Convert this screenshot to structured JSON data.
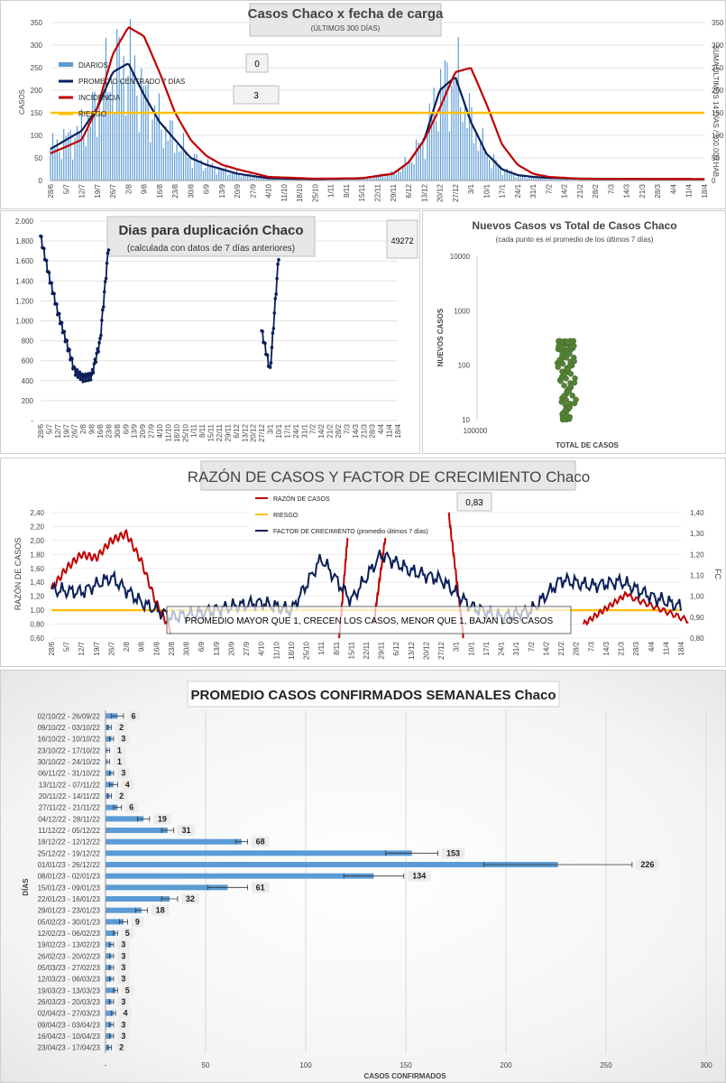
{
  "x_dates": [
    "28/6",
    "5/7",
    "12/7",
    "19/7",
    "26/7",
    "2/8",
    "9/8",
    "16/8",
    "23/8",
    "30/8",
    "6/9",
    "13/9",
    "20/9",
    "27/9",
    "4/10",
    "11/10",
    "18/10",
    "25/10",
    "1/11",
    "8/11",
    "15/11",
    "22/11",
    "29/11",
    "6/12",
    "13/12",
    "20/12",
    "27/12",
    "3/1",
    "10/1",
    "17/1",
    "24/1",
    "31/1",
    "7/2",
    "14/2",
    "21/2",
    "28/2",
    "7/3",
    "14/3",
    "21/3",
    "28/3",
    "4/4",
    "11/4",
    "18/4"
  ],
  "chart1": {
    "title": "Casos Chaco x fecha de carga",
    "subtitle": "(ÚLTIMOS 300 DÍAS)",
    "ylabel_left": "CASOS",
    "ylabel_right": "SUMA ÚLTIMOS 14 DÍAS / 100.000 HAB",
    "yticks_left": [
      "0",
      "50",
      "100",
      "150",
      "200",
      "250",
      "300",
      "350"
    ],
    "yticks_right": [
      "0",
      "50",
      "100",
      "150",
      "200",
      "250",
      "300",
      "350"
    ],
    "box1": "0",
    "box2": "3",
    "legend": [
      "DIARIOS",
      "PROMEDIO CENTRADO 7 DÍAS",
      "INCIDENCIA",
      "RIESGO"
    ],
    "colors": {
      "diarios": "#5b9bd5",
      "promedio": "#0b1f5a",
      "incidencia": "#c00000",
      "riesgo": "#ffc000"
    }
  },
  "chart2": {
    "title": "Dias para duplicación Chaco",
    "subtitle": "(calculada con datos de 7 días anteriores)",
    "box": "49272",
    "yticks": [
      "-",
      "200",
      "400",
      "600",
      "800",
      "1.000",
      "1.200",
      "1.400",
      "1.600",
      "1.800",
      "2.000"
    ],
    "color": "#0b1f5a"
  },
  "chart3": {
    "title": "Nuevos Casos vs Total de Casos Chaco",
    "subtitle": "(cada punto es el promedio de los últimos 7 días)",
    "ylabel": "NUEVOS CASOS",
    "xlabel": "TOTAL DE CASOS",
    "yticks": [
      "10",
      "100",
      "1000",
      "10000"
    ],
    "xtick": "100000",
    "color": "#548235"
  },
  "chart4": {
    "title": "RAZÓN DE CASOS Y FACTOR DE CRECIMIENTO Chaco",
    "ylabel_left": "RAZÓN DE CASOS",
    "ylabel_right": "FC",
    "yticks_left": [
      "0,60",
      "0,80",
      "1,00",
      "1,20",
      "1,40",
      "1,60",
      "1,80",
      "2,00",
      "2,20",
      "2,40"
    ],
    "yticks_right": [
      "0,80",
      "0,90",
      "1,00",
      "1,10",
      "1,20",
      "1,30",
      "1,40"
    ],
    "legend": [
      "RAZÓN DE CASOS",
      "RIESGO",
      "FACTOR DE CRECIMIENTO (promedio últimos 7 días)"
    ],
    "box": "0,83",
    "annotation": "PROMEDIO MAYOR QUE 1, CRECEN LOS CASOS, MENOR QUE 1, BAJAN LOS CASOS",
    "colors": {
      "razon": "#c00000",
      "riesgo": "#ffc000",
      "factor": "#0b1f5a"
    }
  },
  "chart5": {
    "title": "PROMEDIO CASOS CONFIRMADOS SEMANALES Chaco",
    "ylabel": "DÍAS",
    "xlabel": "CASOS CONFIRMADOS",
    "xticks": [
      "-",
      "50",
      "100",
      "150",
      "200",
      "250",
      "300"
    ],
    "bar_color": "#5b9bd5"
  },
  "chart_data": [
    {
      "type": "bar",
      "title": "Casos Chaco x fecha de carga",
      "subtitle": "(ÚLTIMOS 300 DÍAS)",
      "ylim": [
        0,
        350
      ],
      "y2lim": [
        0,
        350
      ],
      "series": [
        {
          "name": "PROMEDIO CENTRADO 7 DÍAS",
          "x": [
            "28/6",
            "12/7",
            "19/7",
            "26/7",
            "2/8",
            "9/8",
            "16/8",
            "23/8",
            "30/8",
            "6/9",
            "13/9",
            "20/9",
            "4/10",
            "25/10",
            "15/11",
            "29/11",
            "6/12",
            "13/12",
            "20/12",
            "27/12",
            "3/1",
            "10/1",
            "17/1",
            "24/1",
            "31/1",
            "7/2",
            "21/2",
            "18/4"
          ],
          "values": [
            70,
            110,
            160,
            240,
            260,
            190,
            130,
            90,
            50,
            35,
            25,
            15,
            5,
            3,
            5,
            15,
            40,
            90,
            200,
            230,
            130,
            60,
            25,
            12,
            8,
            6,
            4,
            3
          ]
        },
        {
          "name": "INCIDENCIA",
          "x": [
            "28/6",
            "12/7",
            "19/7",
            "26/7",
            "2/8",
            "9/8",
            "16/8",
            "23/8",
            "30/8",
            "6/9",
            "13/9",
            "20/9",
            "4/10",
            "25/10",
            "15/11",
            "29/11",
            "6/12",
            "13/12",
            "20/12",
            "27/12",
            "3/1",
            "10/1",
            "17/1",
            "24/1",
            "31/1",
            "7/2",
            "21/2",
            "18/4"
          ],
          "values": [
            60,
            90,
            160,
            280,
            340,
            320,
            240,
            150,
            90,
            55,
            35,
            25,
            8,
            4,
            5,
            15,
            40,
            90,
            160,
            240,
            250,
            170,
            80,
            35,
            15,
            8,
            4,
            3
          ]
        },
        {
          "name": "RIESGO",
          "values": [
            150
          ]
        }
      ]
    },
    {
      "type": "line",
      "title": "Dias para duplicación Chaco",
      "subtitle": "(calculada con datos de 7 días anteriores)",
      "ylim": [
        0,
        2000
      ],
      "x": [
        "28/6",
        "5/7",
        "12/7",
        "19/7",
        "26/7",
        "2/8",
        "9/8",
        "16/8",
        "23/8",
        "27/12",
        "3/1",
        "10/1"
      ],
      "values": [
        1850,
        1450,
        1100,
        800,
        500,
        430,
        450,
        800,
        1750,
        900,
        500,
        1650
      ]
    },
    {
      "type": "scatter",
      "title": "Nuevos Casos vs Total de Casos Chaco",
      "subtitle": "(cada punto es el promedio de los últimos 7 días)",
      "xlabel": "TOTAL DE CASOS",
      "ylabel": "NUEVOS CASOS",
      "yscale": "log",
      "ylim": [
        10,
        10000
      ],
      "y_range_of_points": [
        10,
        280
      ]
    },
    {
      "type": "line",
      "title": "RAZÓN DE CASOS Y FACTOR DE CRECIMIENTO Chaco",
      "ylim": [
        0.6,
        2.4
      ],
      "y2lim": [
        0.8,
        1.4
      ],
      "series": [
        {
          "name": "RAZÓN DE CASOS",
          "x": [
            "28/6",
            "5/7",
            "12/7",
            "19/7",
            "26/7",
            "2/8",
            "9/8",
            "16/8",
            "23/8"
          ],
          "values": [
            1.3,
            1.6,
            1.8,
            1.75,
            2.0,
            2.1,
            1.7,
            1.1,
            0.7
          ]
        },
        {
          "name": "RIESGO",
          "values": [
            1.0
          ]
        },
        {
          "name": "FACTOR DE CRECIMIENTO (promedio últimos 7 días)",
          "x": [
            "28/6",
            "12/7",
            "26/7",
            "9/8",
            "23/8",
            "6/9",
            "20/9",
            "4/10",
            "18/10",
            "1/11",
            "15/11",
            "29/11",
            "13/12",
            "27/12",
            "10/1",
            "24/1",
            "7/2",
            "21/2",
            "7/3",
            "21/3",
            "4/4",
            "18/4"
          ],
          "values": [
            1.03,
            1.02,
            1.09,
            0.97,
            0.9,
            0.92,
            0.95,
            0.97,
            0.93,
            1.18,
            0.98,
            1.2,
            1.12,
            1.08,
            0.95,
            0.9,
            0.93,
            1.08,
            1.05,
            1.07,
            1.0,
            0.95
          ]
        }
      ]
    },
    {
      "type": "bar",
      "orientation": "horizontal",
      "title": "PROMEDIO CASOS CONFIRMADOS SEMANALES Chaco",
      "xlabel": "CASOS CONFIRMADOS",
      "ylabel": "DÍAS",
      "xlim": [
        0,
        300
      ],
      "categories": [
        "02/10/22 - 26/09/22",
        "09/10/22 - 03/10/22",
        "16/10/22 - 10/10/22",
        "23/10/22 - 17/10/22",
        "30/10/22 - 24/10/22",
        "06/11/22 - 31/10/22",
        "13/11/22 - 07/11/22",
        "20/11/22 - 14/11/22",
        "27/11/22 - 21/11/22",
        "04/12/22 - 28/11/22",
        "11/12/22 - 05/12/22",
        "18/12/22 - 12/12/22",
        "25/12/22 - 19/12/22",
        "01/01/23 - 26/12/22",
        "08/01/23 - 02/01/23",
        "15/01/23 - 09/01/23",
        "22/01/23 - 16/01/23",
        "29/01/23 - 23/01/23",
        "05/02/23 - 30/01/23",
        "12/02/23 - 06/02/23",
        "19/02/23 - 13/02/23",
        "26/02/23 - 20/02/23",
        "05/03/23 - 27/02/23",
        "12/03/23 - 06/03/23",
        "19/03/23 - 13/03/23",
        "26/03/23 - 20/03/23",
        "02/04/23 - 27/03/23",
        "09/04/23 - 03/04/23",
        "16/04/23 - 10/04/23",
        "23/04/23 - 17/04/23"
      ],
      "values": [
        6,
        2,
        3,
        1,
        1,
        3,
        4,
        2,
        6,
        19,
        31,
        68,
        153,
        226,
        134,
        61,
        32,
        18,
        9,
        5,
        3,
        3,
        3,
        3,
        5,
        3,
        4,
        3,
        3,
        2
      ],
      "error": [
        3,
        1,
        1,
        1,
        1,
        1,
        2,
        1,
        2,
        3,
        3,
        3,
        13,
        37,
        15,
        10,
        4,
        3,
        2,
        1,
        1,
        1,
        1,
        1,
        1,
        1,
        1,
        1,
        1,
        1
      ]
    }
  ]
}
